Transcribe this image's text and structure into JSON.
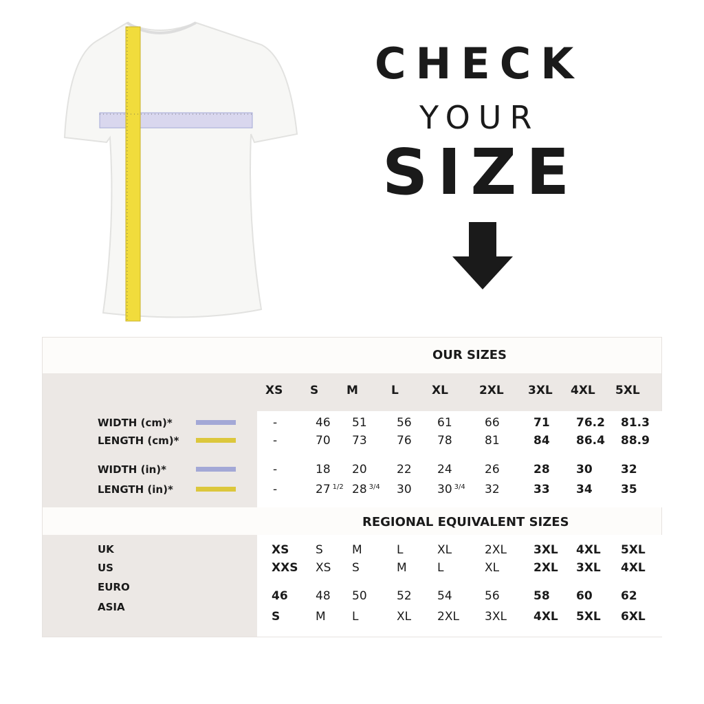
{
  "heading": {
    "line1": "CHECK",
    "line2": "YOUR",
    "line3": "SIZE"
  },
  "icons": {
    "arrow": "arrow-down-icon",
    "tshirt": "tshirt-with-measuring-tapes"
  },
  "colors": {
    "width_swatch": "#a3a8d6",
    "length_swatch": "#dcc73c",
    "panel": "#ece8e5",
    "text": "#1a1a1a"
  },
  "our_sizes": {
    "title": "OUR SIZES",
    "sizes": [
      "XS",
      "S",
      "M",
      "L",
      "XL",
      "2XL",
      "3XL",
      "4XL",
      "5XL"
    ],
    "rows": [
      {
        "label": "WIDTH (cm)*",
        "swatch": "width",
        "values": [
          "-",
          "46",
          "51",
          "56",
          "61",
          "66",
          "71",
          "76.2",
          "81.3"
        ]
      },
      {
        "label": "LENGTH (cm)*",
        "swatch": "length",
        "values": [
          "-",
          "70",
          "73",
          "76",
          "78",
          "81",
          "84",
          "86.4",
          "88.9"
        ]
      },
      {
        "label": "WIDTH (in)*",
        "swatch": "width",
        "values": [
          "-",
          "18",
          "20",
          "22",
          "24",
          "26",
          "28",
          "30",
          "32"
        ]
      },
      {
        "label": "LENGTH (in)*",
        "swatch": "length",
        "values": [
          "-",
          "27 1/2",
          "28 3/4",
          "30",
          "30 3/4",
          "32",
          "33",
          "34",
          "35"
        ]
      }
    ]
  },
  "regional": {
    "title": "REGIONAL EQUIVALENT SIZES",
    "rows": [
      {
        "label": "UK",
        "values": [
          "XS",
          "S",
          "M",
          "L",
          "XL",
          "2XL",
          "3XL",
          "4XL",
          "5XL"
        ]
      },
      {
        "label": "US",
        "values": [
          "XXS",
          "XS",
          "S",
          "M",
          "L",
          "XL",
          "2XL",
          "3XL",
          "4XL"
        ]
      },
      {
        "label": "EURO",
        "values": [
          "46",
          "48",
          "50",
          "52",
          "54",
          "56",
          "58",
          "60",
          "62"
        ]
      },
      {
        "label": "ASIA",
        "values": [
          "S",
          "M",
          "L",
          "XL",
          "2XL",
          "3XL",
          "4XL",
          "5XL",
          "6XL"
        ]
      }
    ]
  }
}
